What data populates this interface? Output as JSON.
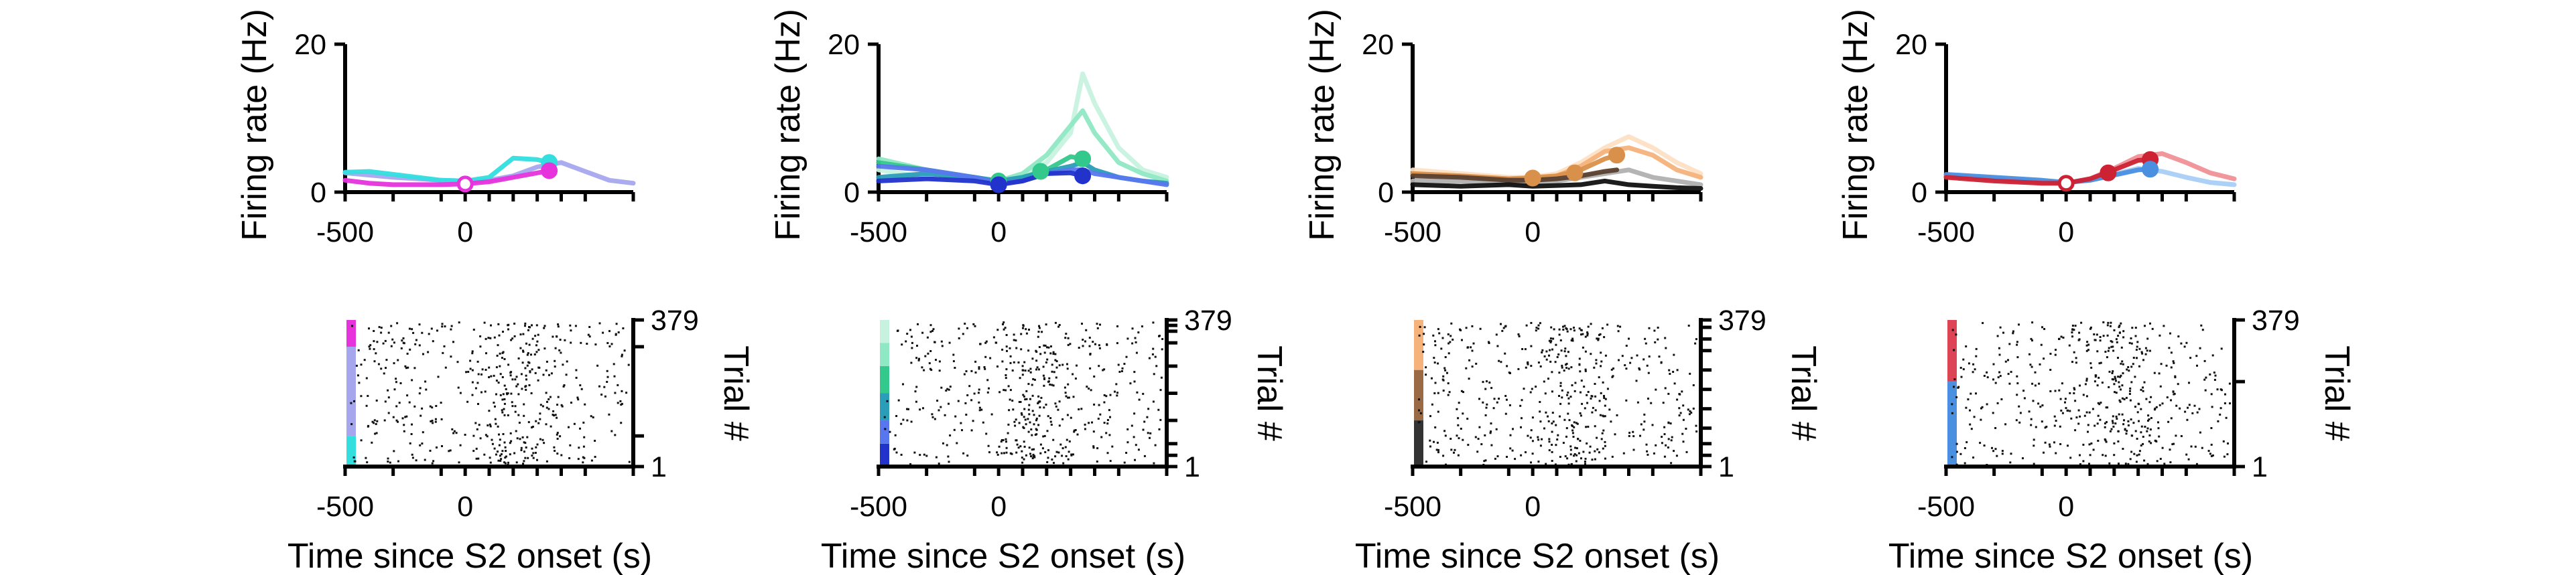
{
  "chart_data": [
    {
      "panel": "rate-1",
      "type": "line",
      "ylabel": "Firing rate (Hz)",
      "xlim": [
        -500,
        700
      ],
      "ylim": [
        0,
        20
      ],
      "x_tick_labels": [
        "-500",
        "0"
      ],
      "y_tick_labels": [
        "0",
        "20"
      ],
      "series": [
        {
          "color": "#a6a6ee",
          "x": [
            -500,
            -300,
            -100,
            0,
            100,
            200,
            300,
            400,
            500,
            600,
            700
          ],
          "y": [
            2.6,
            2.0,
            1.6,
            1.5,
            1.6,
            2.2,
            3.4,
            4.0,
            2.8,
            1.6,
            1.2
          ]
        },
        {
          "color": "#33dede",
          "x": [
            -500,
            -400,
            -300,
            -200,
            -100,
            0,
            100,
            200,
            300,
            350
          ],
          "y": [
            2.7,
            2.8,
            2.4,
            2.0,
            1.6,
            1.5,
            2.0,
            4.6,
            4.4,
            4.0
          ]
        },
        {
          "color": "#e633dc",
          "x": [
            -500,
            -400,
            -300,
            -200,
            -100,
            0,
            100,
            200,
            300,
            350
          ],
          "y": [
            1.6,
            1.2,
            1.0,
            1.0,
            1.0,
            1.1,
            1.4,
            2.0,
            2.6,
            2.9
          ]
        }
      ],
      "markers": [
        {
          "color": "#e633dc",
          "x": 0,
          "y": 1.1,
          "filled": false
        },
        {
          "color": "#33dede",
          "x": 350,
          "y": 4.0,
          "filled": true
        },
        {
          "color": "#e633dc",
          "x": 350,
          "y": 2.9,
          "filled": true
        }
      ]
    },
    {
      "panel": "rate-2",
      "type": "line",
      "ylabel": "Firing rate (Hz)",
      "xlim": [
        -500,
        700
      ],
      "ylim": [
        0,
        20
      ],
      "x_tick_labels": [
        "-500",
        "0"
      ],
      "y_tick_labels": [
        "0",
        "20"
      ],
      "series": [
        {
          "color": "#c8f2e0",
          "x": [
            -500,
            -300,
            -100,
            0,
            100,
            200,
            300,
            350,
            400,
            500,
            600,
            700
          ],
          "y": [
            3.0,
            2.0,
            1.5,
            1.5,
            2.5,
            4.0,
            8.0,
            16.0,
            12.0,
            6.0,
            3.0,
            2.0
          ]
        },
        {
          "color": "#8fe8c4",
          "x": [
            -500,
            -300,
            -100,
            0,
            100,
            200,
            300,
            350,
            400,
            500,
            600,
            700
          ],
          "y": [
            4.5,
            3.0,
            2.0,
            1.5,
            2.5,
            5.0,
            9.0,
            11.0,
            8.0,
            4.0,
            2.5,
            1.5
          ]
        },
        {
          "color": "#33c88c",
          "x": [
            -500,
            -300,
            -100,
            0,
            100,
            200,
            300,
            350
          ],
          "y": [
            4.0,
            3.0,
            2.0,
            1.5,
            2.0,
            3.0,
            4.8,
            4.5
          ]
        },
        {
          "color": "#2a9db8",
          "x": [
            -500,
            -300,
            -100,
            0,
            100,
            200,
            300,
            350,
            400,
            500,
            600,
            700
          ],
          "y": [
            2.0,
            2.5,
            2.0,
            1.5,
            2.0,
            2.8,
            3.5,
            4.0,
            3.0,
            2.0,
            1.5,
            1.2
          ]
        },
        {
          "color": "#5877ee",
          "x": [
            -500,
            -300,
            -100,
            0,
            100,
            200,
            300,
            350,
            400,
            500,
            600,
            700
          ],
          "y": [
            3.5,
            3.0,
            2.0,
            1.2,
            1.5,
            2.5,
            3.0,
            3.0,
            2.5,
            2.0,
            1.5,
            1.0
          ]
        },
        {
          "color": "#2233cc",
          "x": [
            -500,
            -300,
            -100,
            0,
            100,
            200,
            300,
            350
          ],
          "y": [
            1.5,
            1.8,
            1.5,
            1.0,
            1.5,
            2.5,
            2.6,
            2.2
          ]
        }
      ],
      "markers": [
        {
          "color": "#33c88c",
          "x": 0,
          "y": 1.5,
          "filled": true
        },
        {
          "color": "#2233cc",
          "x": 0,
          "y": 1.0,
          "filled": true
        },
        {
          "color": "#33c88c",
          "x": 175,
          "y": 2.8,
          "filled": true
        },
        {
          "color": "#33c88c",
          "x": 350,
          "y": 4.5,
          "filled": true
        },
        {
          "color": "#2233cc",
          "x": 350,
          "y": 2.2,
          "filled": true
        }
      ]
    },
    {
      "panel": "rate-3",
      "type": "line",
      "ylabel": "Firing rate (Hz)",
      "xlim": [
        -500,
        700
      ],
      "ylim": [
        0,
        20
      ],
      "x_tick_labels": [
        "-500",
        "0"
      ],
      "y_tick_labels": [
        "0",
        "20"
      ],
      "series": [
        {
          "color": "#fde0c4",
          "x": [
            -500,
            -300,
            -100,
            0,
            100,
            200,
            300,
            400,
            500,
            600,
            700
          ],
          "y": [
            3.0,
            2.5,
            2.0,
            2.0,
            2.5,
            4.0,
            6.0,
            7.5,
            6.0,
            4.0,
            2.5
          ]
        },
        {
          "color": "#f5b27a",
          "x": [
            -500,
            -300,
            -100,
            0,
            100,
            200,
            300,
            400,
            500,
            600,
            700
          ],
          "y": [
            2.5,
            2.2,
            1.8,
            2.0,
            2.2,
            3.5,
            5.5,
            6.0,
            5.0,
            3.0,
            2.0
          ]
        },
        {
          "color": "#d9904a",
          "x": [
            -500,
            -300,
            -100,
            0,
            100,
            200,
            300,
            350
          ],
          "y": [
            2.5,
            2.2,
            1.8,
            1.9,
            2.2,
            3.0,
            4.5,
            5.0
          ]
        },
        {
          "color": "#b0b0b0",
          "x": [
            -500,
            -300,
            -100,
            0,
            100,
            200,
            300,
            400,
            500,
            600,
            700
          ],
          "y": [
            1.5,
            1.5,
            1.2,
            1.2,
            1.5,
            2.0,
            2.5,
            3.0,
            2.0,
            1.5,
            1.0
          ]
        },
        {
          "color": "#5a4030",
          "x": [
            -500,
            -300,
            -100,
            0,
            100,
            200,
            300,
            350
          ],
          "y": [
            2.2,
            2.0,
            1.6,
            1.6,
            1.8,
            2.2,
            2.8,
            3.0
          ]
        },
        {
          "color": "#111111",
          "x": [
            -500,
            -300,
            -100,
            0,
            100,
            200,
            300,
            400,
            500,
            600,
            700
          ],
          "y": [
            1.0,
            0.8,
            1.0,
            0.8,
            0.9,
            1.0,
            1.5,
            1.0,
            0.8,
            0.6,
            0.5
          ]
        }
      ],
      "markers": [
        {
          "color": "#d9904a",
          "x": 0,
          "y": 1.9,
          "filled": true
        },
        {
          "color": "#d9904a",
          "x": 175,
          "y": 2.6,
          "filled": true
        },
        {
          "color": "#d9904a",
          "x": 350,
          "y": 5.0,
          "filled": true
        }
      ]
    },
    {
      "panel": "rate-4",
      "type": "line",
      "ylabel": "Firing rate (Hz)",
      "xlim": [
        -500,
        700
      ],
      "ylim": [
        0,
        20
      ],
      "x_tick_labels": [
        "-500",
        "0"
      ],
      "y_tick_labels": [
        "0",
        "20"
      ],
      "series": [
        {
          "color": "#a8cdf6",
          "x": [
            -500,
            -300,
            -100,
            0,
            100,
            200,
            300,
            400,
            500,
            600,
            700
          ],
          "y": [
            2.2,
            1.8,
            1.4,
            1.3,
            1.6,
            2.4,
            3.2,
            2.8,
            2.0,
            1.3,
            1.0
          ]
        },
        {
          "color": "#f09096",
          "x": [
            -500,
            -300,
            -100,
            0,
            100,
            200,
            300,
            400,
            500,
            600,
            700
          ],
          "y": [
            2.2,
            1.8,
            1.3,
            1.2,
            1.8,
            3.2,
            4.8,
            5.2,
            4.0,
            2.6,
            1.8
          ]
        },
        {
          "color": "#4a8fe0",
          "x": [
            -500,
            -300,
            -100,
            0,
            100,
            200,
            300,
            350
          ],
          "y": [
            2.4,
            2.0,
            1.6,
            1.3,
            1.6,
            2.3,
            3.0,
            3.1
          ]
        },
        {
          "color": "#cc2233",
          "x": [
            -500,
            -300,
            -100,
            0,
            100,
            200,
            300,
            350
          ],
          "y": [
            2.0,
            1.5,
            1.2,
            1.2,
            1.8,
            3.0,
            4.3,
            4.4
          ]
        }
      ],
      "markers": [
        {
          "color": "#cc2233",
          "x": 0,
          "y": 1.2,
          "filled": false
        },
        {
          "color": "#cc2233",
          "x": 175,
          "y": 2.6,
          "filled": true
        },
        {
          "color": "#cc2233",
          "x": 350,
          "y": 4.4,
          "filled": true
        },
        {
          "color": "#4a8fe0",
          "x": 350,
          "y": 3.1,
          "filled": true
        }
      ]
    },
    {
      "panel": "raster-1",
      "type": "scatter",
      "xlabel": "Time since S2 onset (s)",
      "ylabel": "Trial #",
      "xlim": [
        -500,
        700
      ],
      "ylim": [
        1,
        379
      ],
      "x_tick_labels": [
        "-500",
        "0"
      ],
      "y_tick_labels": [
        "1",
        "379"
      ],
      "trial_groups": [
        {
          "color": "#e633dc",
          "from": 310,
          "to": 379
        },
        {
          "color": "#a6a6ee",
          "from": 80,
          "to": 310
        },
        {
          "color": "#33dede",
          "from": 1,
          "to": 80
        }
      ],
      "trial_boundaries": [
        310,
        80
      ],
      "burst_times": [
        200
      ]
    },
    {
      "panel": "raster-2",
      "type": "scatter",
      "xlabel": "Time since S2 onset (s)",
      "ylabel": "Trial #",
      "xlim": [
        -500,
        700
      ],
      "ylim": [
        1,
        379
      ],
      "x_tick_labels": [
        "-500",
        "0"
      ],
      "y_tick_labels": [
        "1",
        "379"
      ],
      "trial_groups": [
        {
          "color": "#2233cc",
          "from": 1,
          "to": 60
        },
        {
          "color": "#5877ee",
          "from": 60,
          "to": 120
        },
        {
          "color": "#2a9db8",
          "from": 120,
          "to": 190
        },
        {
          "color": "#33c88c",
          "from": 190,
          "to": 260
        },
        {
          "color": "#8fe8c4",
          "from": 260,
          "to": 320
        },
        {
          "color": "#c8f2e0",
          "from": 320,
          "to": 379
        }
      ],
      "trial_boundaries": [
        365,
        350,
        320,
        260,
        190,
        120,
        60,
        30
      ],
      "burst_times": [
        150
      ]
    },
    {
      "panel": "raster-3",
      "type": "scatter",
      "xlabel": "Time since S2 onset (s)",
      "ylabel": "Trial #",
      "xlim": [
        -500,
        700
      ],
      "ylim": [
        1,
        379
      ],
      "x_tick_labels": [
        "-500",
        "0"
      ],
      "y_tick_labels": [
        "1",
        "379"
      ],
      "trial_groups": [
        {
          "color": "#f5b27a",
          "from": 250,
          "to": 379
        },
        {
          "color": "#9a6a44",
          "from": 120,
          "to": 250
        },
        {
          "color": "#333333",
          "from": 1,
          "to": 120
        }
      ],
      "trial_boundaries": [
        360,
        330,
        300,
        250,
        200,
        150,
        100,
        60,
        30
      ],
      "burst_times": [
        150
      ]
    },
    {
      "panel": "raster-4",
      "type": "scatter",
      "xlabel": "Time since S2 onset (s)",
      "ylabel": "Trial #",
      "xlim": [
        -500,
        700
      ],
      "ylim": [
        1,
        379
      ],
      "x_tick_labels": [
        "-500",
        "0"
      ],
      "y_tick_labels": [
        "1",
        "379"
      ],
      "trial_groups": [
        {
          "color": "#dd4455",
          "from": 220,
          "to": 379
        },
        {
          "color": "#4a8fe0",
          "from": 1,
          "to": 220
        }
      ],
      "trial_boundaries": [
        220
      ],
      "burst_times": [
        150,
        250
      ]
    }
  ]
}
